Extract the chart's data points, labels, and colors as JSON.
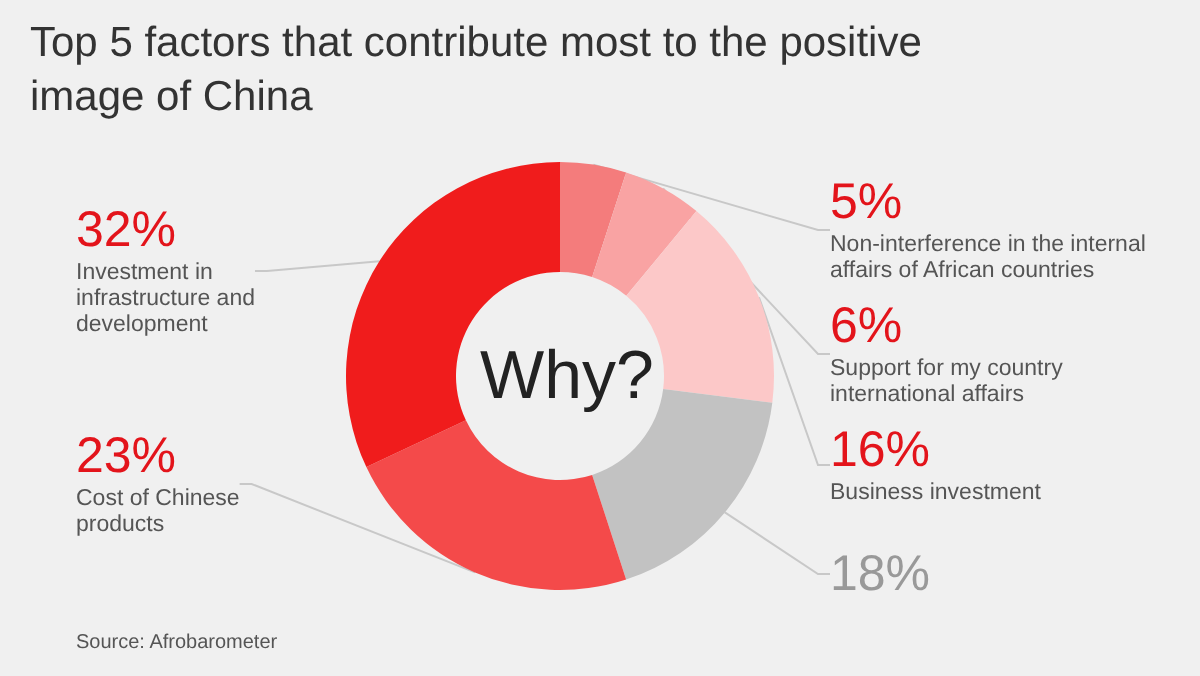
{
  "chart_data": {
    "type": "donut",
    "title": "Top 5 factors that contribute most to the positive image of China",
    "categories": [
      "Non-interference in the internal affairs of African countries",
      "Support for my country international affairs",
      "Business investment",
      null,
      "Cost of Chinese products",
      "Investment in infrastructure and development"
    ],
    "values": [
      5,
      6,
      16,
      18,
      23,
      32
    ],
    "value_labels": [
      "5%",
      "6%",
      "16%",
      "18%",
      "23%",
      "32%"
    ],
    "colors": [
      "#f47c7c",
      "#f9a3a3",
      "#fcc8c8",
      "#c2c2c2",
      "#f44a4a",
      "#f01c1c"
    ],
    "annotations": [
      "Why?",
      "Source: Afrobarometer"
    ],
    "legend": false
  }
}
